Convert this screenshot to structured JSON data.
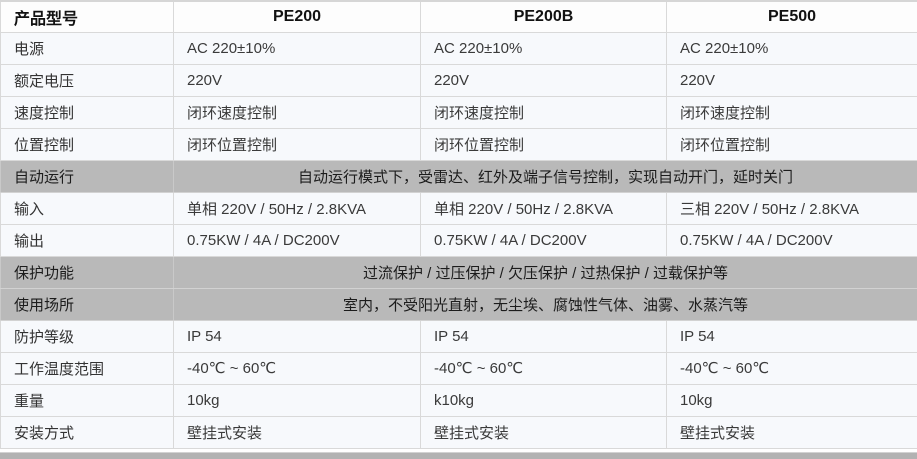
{
  "table": {
    "header": {
      "label": "产品型号",
      "columns": [
        "PE200",
        "PE200B",
        "PE500"
      ]
    },
    "rows": [
      {
        "label": "电源",
        "type": "cells",
        "values": [
          "AC 220±10%",
          "AC 220±10%",
          "AC 220±10%"
        ]
      },
      {
        "label": "额定电压",
        "type": "cells",
        "values": [
          "220V",
          "220V",
          "220V"
        ]
      },
      {
        "label": "速度控制",
        "type": "cells",
        "values": [
          "闭环速度控制",
          "闭环速度控制",
          "闭环速度控制"
        ]
      },
      {
        "label": "位置控制",
        "type": "cells",
        "values": [
          "闭环位置控制",
          "闭环位置控制",
          "闭环位置控制"
        ]
      },
      {
        "label": "自动运行",
        "type": "span",
        "value": "自动运行模式下，受雷达、红外及端子信号控制，实现自动开门，延时关门"
      },
      {
        "label": "输入",
        "type": "cells",
        "values": [
          "单相 220V / 50Hz / 2.8KVA",
          "单相 220V / 50Hz / 2.8KVA",
          "三相 220V / 50Hz / 2.8KVA"
        ]
      },
      {
        "label": "输出",
        "type": "cells",
        "values": [
          "0.75KW / 4A / DC200V",
          "0.75KW / 4A / DC200V",
          "0.75KW / 4A / DC200V"
        ]
      },
      {
        "label": "保护功能",
        "type": "span",
        "value": "过流保护 / 过压保护 / 欠压保护 / 过热保护 / 过载保护等"
      },
      {
        "label": "使用场所",
        "type": "span",
        "value": "室内，不受阳光直射，无尘埃、腐蚀性气体、油雾、水蒸汽等"
      },
      {
        "label": "防护等级",
        "type": "cells",
        "values": [
          "IP 54",
          "IP 54",
          "IP 54"
        ]
      },
      {
        "label": "工作温度范围",
        "type": "cells",
        "values": [
          "-40℃ ~ 60℃",
          "-40℃ ~ 60℃",
          "-40℃ ~ 60℃"
        ]
      },
      {
        "label": "重量",
        "type": "cells",
        "values": [
          "10kg",
          "k10kg",
          "10kg"
        ]
      },
      {
        "label": "安装方式",
        "type": "cells",
        "values": [
          "壁挂式安装",
          "壁挂式安装",
          "壁挂式安装"
        ]
      }
    ],
    "colors": {
      "highlight_row_bg": "#b9b9b9",
      "data_row_bg": "#f7f9fc",
      "header_bg": "#fdfdfd",
      "border": "#d9d9d9"
    }
  }
}
